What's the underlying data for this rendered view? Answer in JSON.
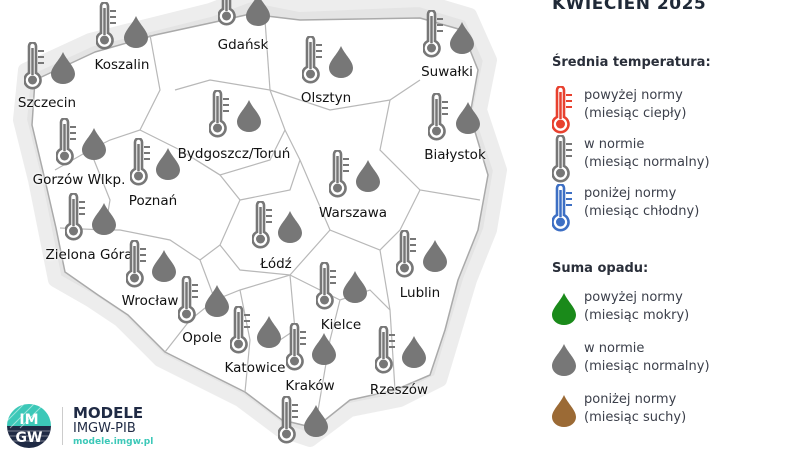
{
  "title": "KWIECIEŃ 2025",
  "colors": {
    "normal": "#777777",
    "warm": "#e8412f",
    "cold": "#3d6fc4",
    "wet": "#1a8a1a",
    "dry": "#9b6a35"
  },
  "legend": {
    "temperature_heading": "Średnia temperatura:",
    "temperature_items": [
      {
        "icon": "thermometer-red-icon",
        "line1": "powyżej normy",
        "line2": "(miesiąc ciepły)"
      },
      {
        "icon": "thermometer-grey-icon",
        "line1": "w normie",
        "line2": "(miesiąc normalny)"
      },
      {
        "icon": "thermometer-blue-icon",
        "line1": "poniżej normy",
        "line2": "(miesiąc chłodny)"
      }
    ],
    "precip_heading": "Suma opadu:",
    "precip_items": [
      {
        "icon": "drop-green-icon",
        "line1": "powyżej normy",
        "line2": "(miesiąc mokry)"
      },
      {
        "icon": "drop-grey-icon",
        "line1": "w normie",
        "line2": "(miesiąc normalny)"
      },
      {
        "icon": "drop-brown-icon",
        "line1": "poniżej normy",
        "line2": "(miesiąc suchy)"
      }
    ]
  },
  "cities": [
    {
      "name": "Gdańsk",
      "temperature": "normal",
      "precipitation": "normal"
    },
    {
      "name": "Koszalin",
      "temperature": "normal",
      "precipitation": "normal"
    },
    {
      "name": "Szczecin",
      "temperature": "normal",
      "precipitation": "normal"
    },
    {
      "name": "Suwałki",
      "temperature": "normal",
      "precipitation": "normal"
    },
    {
      "name": "Olsztyn",
      "temperature": "normal",
      "precipitation": "normal"
    },
    {
      "name": "Bydgoszcz/Toruń",
      "temperature": "normal",
      "precipitation": "normal"
    },
    {
      "name": "Białystok",
      "temperature": "normal",
      "precipitation": "normal"
    },
    {
      "name": "Gorzów Wlkp.",
      "temperature": "normal",
      "precipitation": "normal"
    },
    {
      "name": "Poznań",
      "temperature": "normal",
      "precipitation": "normal"
    },
    {
      "name": "Warszawa",
      "temperature": "normal",
      "precipitation": "normal"
    },
    {
      "name": "Zielona Góra",
      "temperature": "normal",
      "precipitation": "normal"
    },
    {
      "name": "Łódź",
      "temperature": "normal",
      "precipitation": "normal"
    },
    {
      "name": "Lublin",
      "temperature": "normal",
      "precipitation": "normal"
    },
    {
      "name": "Wrocław",
      "temperature": "normal",
      "precipitation": "normal"
    },
    {
      "name": "Kielce",
      "temperature": "normal",
      "precipitation": "normal"
    },
    {
      "name": "Opole",
      "temperature": "normal",
      "precipitation": "normal"
    },
    {
      "name": "Katowice",
      "temperature": "normal",
      "precipitation": "normal"
    },
    {
      "name": "Kraków",
      "temperature": "normal",
      "precipitation": "normal"
    },
    {
      "name": "Rzeszów",
      "temperature": "normal",
      "precipitation": "normal"
    },
    {
      "name": "",
      "temperature": "normal",
      "precipitation": "normal"
    }
  ],
  "logo": {
    "mark": "IMGW",
    "title": "MODELE",
    "subtitle": "IMGW-PIB",
    "url": "modele.imgw.pl"
  }
}
